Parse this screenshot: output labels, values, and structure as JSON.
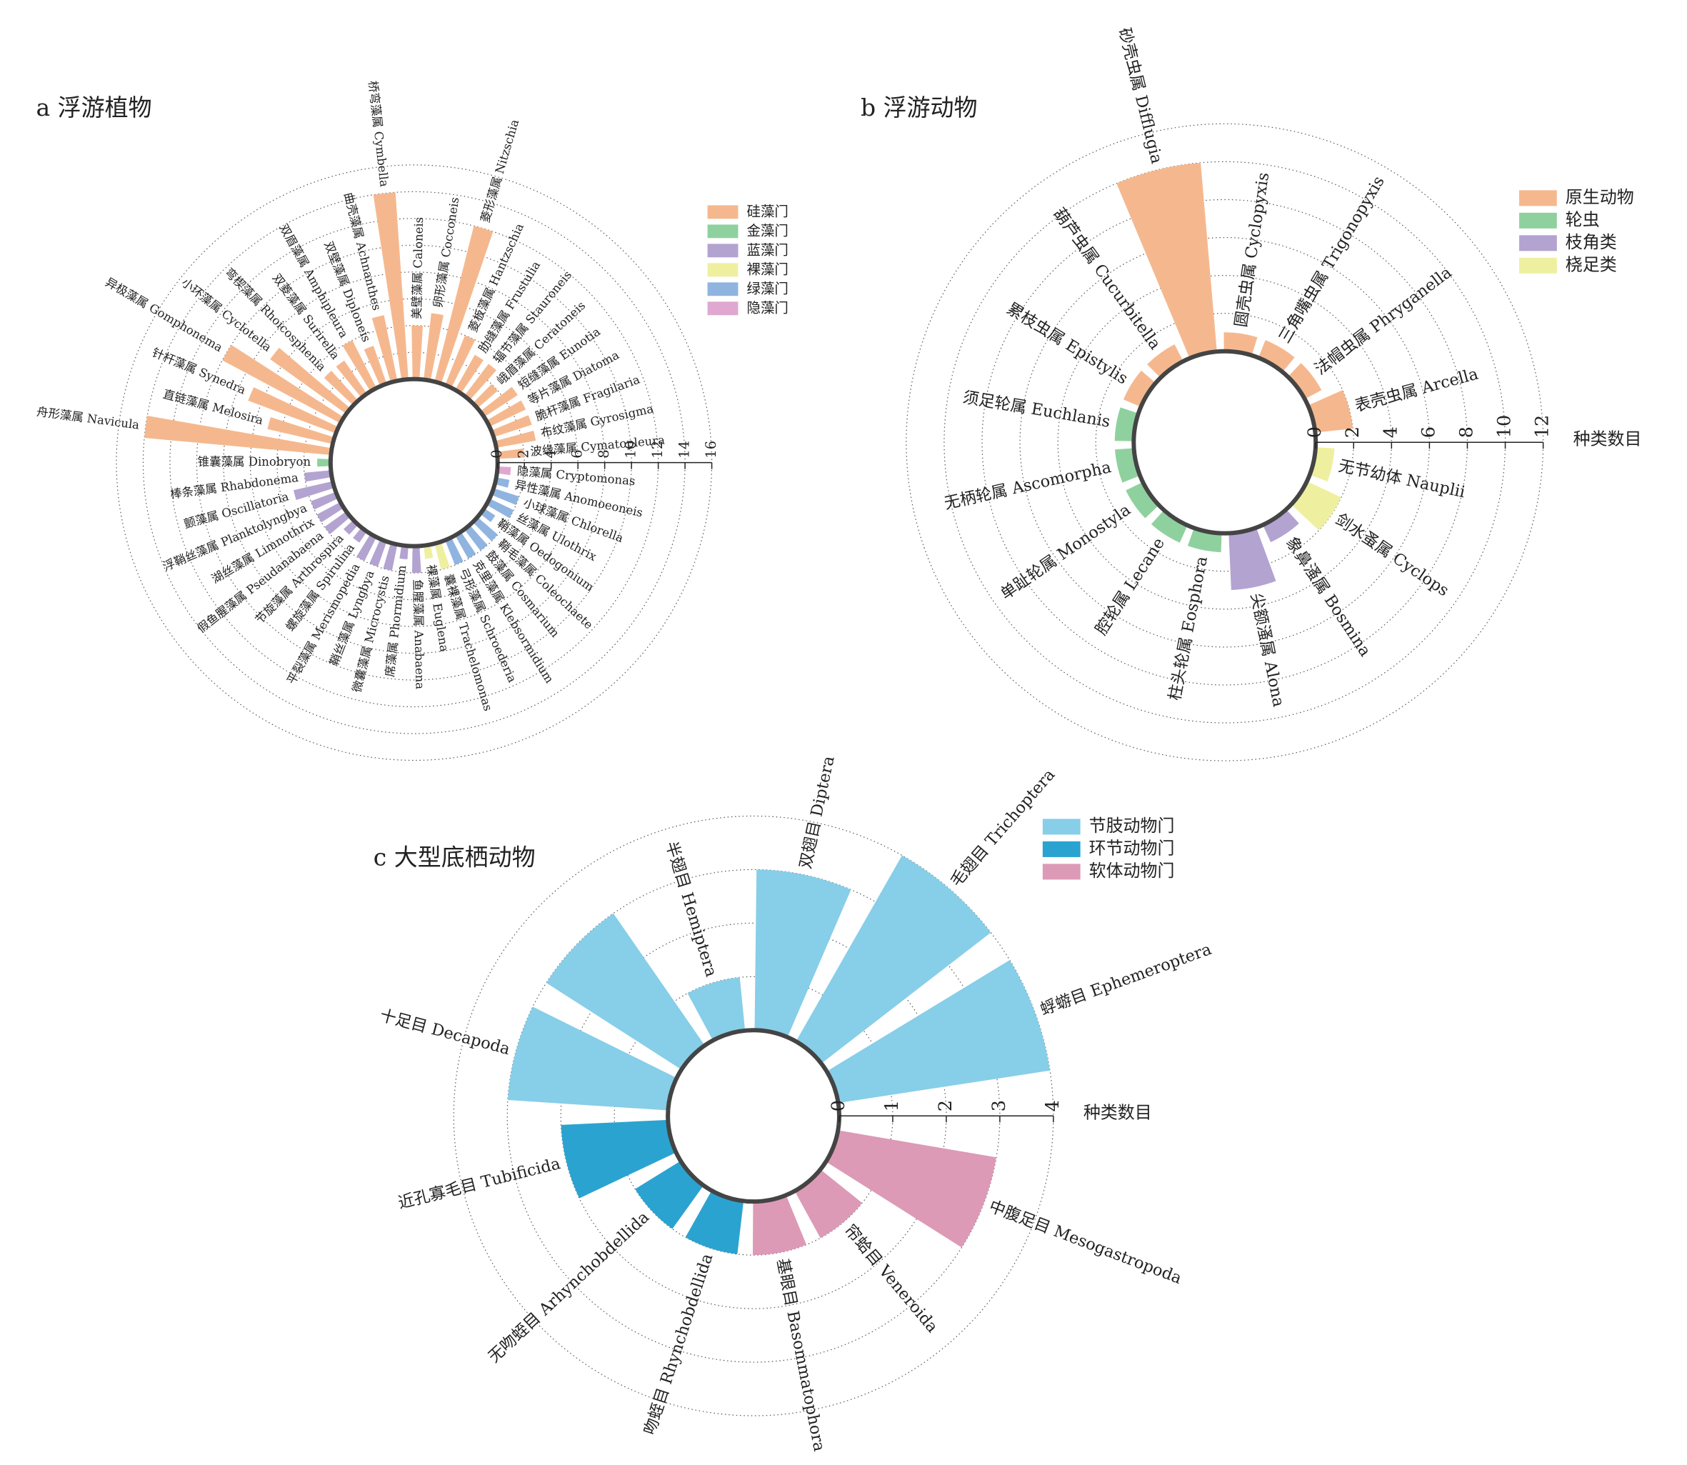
{
  "chart_data": [
    {
      "type": "radial_bar",
      "title": "a 浮游植物",
      "ylim": [
        0,
        16
      ],
      "yticks": [
        0,
        2,
        4,
        6,
        8,
        10,
        12,
        14,
        16
      ],
      "grid": true,
      "legend": "upper right",
      "series": [
        {
          "name": "硅藻门",
          "color": "#f5b88e",
          "categories": [
            "波缘藻属 Cymatopleura",
            "布纹藻属 Gyrosigma",
            "脆杆藻属 Fragilaria",
            "等片藻属 Diatoma",
            "短缝藻属 Eunotia",
            "峨眉藻属 Ceratoneis",
            "辐节藻属 Stauroneis",
            "肋缝藻属 Frustulia",
            "菱板藻属 Hantzschia",
            "菱形藻属 Nitzschia",
            "卵形藻属 Cocconeis",
            "美壁藻属 Caloneis",
            "桥弯藻属 Cymbella",
            "曲壳藻属 Achnanthes",
            "双壁藻属 Diploneis",
            "双眉藻属 Amphipleura",
            "双菱藻属 Surirella",
            "弯楔藻属 Rhoicosphenia",
            "小环藻属 Cyclotella",
            "异极藻属 Gomphonema",
            "针杆藻属 Synedra",
            "直链藻属 Melosira",
            "舟形藻属 Navicula"
          ],
          "values": [
            2,
            3,
            3,
            3,
            3,
            2,
            3,
            3,
            4,
            12,
            5,
            4,
            14,
            5,
            3,
            4,
            3,
            3,
            7,
            10,
            7,
            5,
            14
          ]
        },
        {
          "name": "金藻门",
          "color": "#8fd19e",
          "categories": [
            "锥囊藻属 Dinobryon"
          ],
          "values": [
            1
          ]
        },
        {
          "name": "蓝藻门",
          "color": "#b3a3d1",
          "categories": [
            "棒条藻属 Rhabdonema",
            "颤藻属 Oscillatoria",
            "浮鞘丝藻属 Planktolyngbya",
            "湖丝藻属 Limnothrix",
            "假鱼腥藻属 Pseudanabaena",
            "节旋藻属 Arthrospira",
            "螺旋藻属 Spirulina",
            "平裂藻属 Merismopedia",
            "鞘丝藻属 Lyngbya",
            "微囊藻属 Microcystis",
            "席藻属 Phormidium",
            "鱼腥藻属 Anabaena"
          ],
          "values": [
            2,
            3,
            2,
            2,
            2,
            1,
            1,
            2,
            2,
            2,
            1,
            2
          ]
        },
        {
          "name": "裸藻门",
          "color": "#eef0a0",
          "categories": [
            "裸藻属 Euglena",
            "囊裸藻属 Trachelomonas"
          ],
          "values": [
            1,
            2
          ]
        },
        {
          "name": "绿藻门",
          "color": "#8fb4e0",
          "categories": [
            "弓形藻属 Schroederia",
            "克里藻属 Klebsormidium",
            "鼓藻属 Cosmarium",
            "鞘毛藻属 Coleochaete",
            "鞘藻属 Oedogonium",
            "丝藻属 Ulothrix",
            "小球藻属 Chlorella",
            "异性藻属 Anomoeoneis"
          ],
          "values": [
            2,
            2,
            2,
            2,
            1,
            2,
            2,
            1
          ]
        },
        {
          "name": "隐藻门",
          "color": "#e0a8d0",
          "categories": [
            "隐藻属 Cryptomonas"
          ],
          "values": [
            1
          ]
        }
      ]
    },
    {
      "type": "radial_bar",
      "title": "b 浮游动物",
      "ylim": [
        0,
        12
      ],
      "yticks": [
        0,
        2,
        4,
        6,
        8,
        10,
        12
      ],
      "grid": true,
      "legend": "upper right",
      "ylabel": "种类数目",
      "series": [
        {
          "name": "原生动物",
          "color": "#f5b88e",
          "categories": [
            "表壳虫属 Arcella",
            "法帽虫属 Phryganella",
            "三角嘴虫属 Trigonopyxis",
            "圆壳虫属 Cyclopyxis",
            "砂壳虫属 Difflugia",
            "葫芦虫属 Cucurbitella",
            "累枝虫属 Epistylis"
          ],
          "values": [
            2,
            1,
            1,
            1,
            10,
            1,
            1
          ]
        },
        {
          "name": "轮虫",
          "color": "#8fd19e",
          "categories": [
            "须足轮属 Euchlanis",
            "无柄轮属 Ascomorpha",
            "单趾轮属 Monostyla",
            "腔轮属 Lecane",
            "柱头轮属 Eosphora"
          ],
          "values": [
            1,
            1,
            1,
            1,
            1
          ]
        },
        {
          "name": "枝角类",
          "color": "#b3a3d1",
          "categories": [
            "尖额溞属 Alona",
            "象鼻溞属 Bosmina"
          ],
          "values": [
            3,
            1
          ]
        },
        {
          "name": "桡足类",
          "color": "#eef0a0",
          "categories": [
            "剑水蚤属 Cyclops",
            "无节幼体 Nauplii"
          ],
          "values": [
            2,
            1
          ]
        }
      ]
    },
    {
      "type": "radial_bar",
      "title": "c 大型底栖动物",
      "ylim": [
        0,
        4
      ],
      "yticks": [
        0,
        1,
        2,
        3,
        4
      ],
      "grid": true,
      "legend": "upper right",
      "ylabel": "种类数目",
      "series": [
        {
          "name": "节肢动物门",
          "color": "#87cee8",
          "categories": [
            "蜉蝣目 Ephemeroptera",
            "毛翅目 Trichoptera",
            "双翅目 Diptera",
            "半翅目 Hemiptera",
            null,
            "十足目 Decapoda"
          ],
          "values": [
            4,
            4,
            3,
            1,
            3,
            3
          ]
        },
        {
          "name": "环节动物门",
          "color": "#2ba3d0",
          "categories": [
            "近孔寡毛目 Tubificida",
            "无吻蛭目 Arhynchobdellida",
            "吻蛭目 Rhynchobdellida"
          ],
          "values": [
            2,
            1,
            1
          ]
        },
        {
          "name": "软体动物门",
          "color": "#dc9ab6",
          "categories": [
            "基眼目 Basommatophora",
            "帘蛤目 Veneroida",
            "中腹足目 Mesogastropoda"
          ],
          "values": [
            1,
            1,
            3
          ]
        }
      ]
    }
  ]
}
